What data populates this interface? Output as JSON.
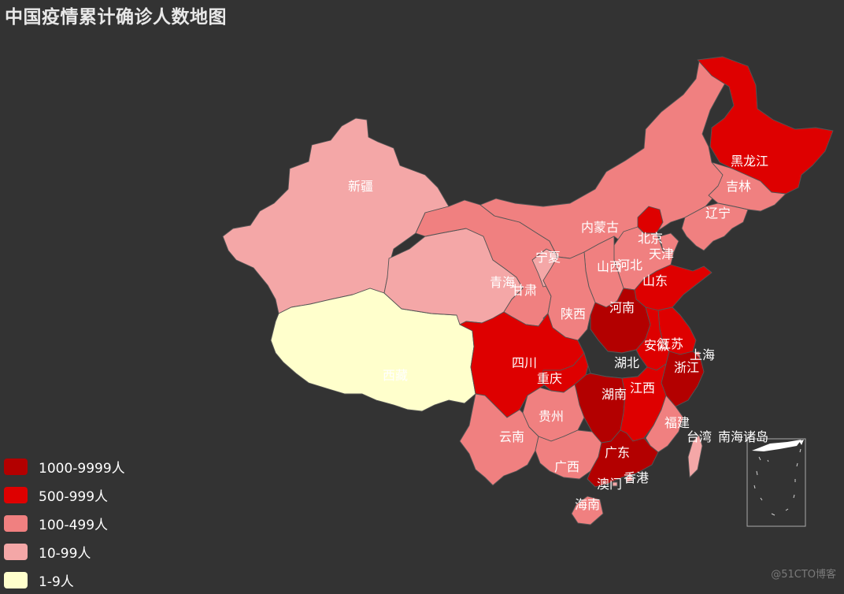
{
  "title": "中国疫情累计确诊人数地图",
  "legend": [
    {
      "label": "1000-9999人",
      "color": "#b30000"
    },
    {
      "label": "500-999人",
      "color": "#de0000"
    },
    {
      "label": "100-499人",
      "color": "#f08080"
    },
    {
      "label": "10-99人",
      "color": "#f4a7a7"
    },
    {
      "label": "1-9人",
      "color": "#ffffcc"
    }
  ],
  "provinces": [
    {
      "name": "新疆",
      "range": "10-99人",
      "color": "#f4a7a7"
    },
    {
      "name": "西藏",
      "range": "1-9人",
      "color": "#ffffcc"
    },
    {
      "name": "青海",
      "range": "10-99人",
      "color": "#f4a7a7"
    },
    {
      "name": "甘肃",
      "range": "100-499人",
      "color": "#f08080"
    },
    {
      "name": "内蒙古",
      "range": "100-499人",
      "color": "#f08080"
    },
    {
      "name": "宁夏",
      "range": "10-99人",
      "color": "#f4a7a7"
    },
    {
      "name": "黑龙江",
      "range": "500-999人",
      "color": "#de0000"
    },
    {
      "name": "吉林",
      "range": "100-499人",
      "color": "#f08080"
    },
    {
      "name": "辽宁",
      "range": "100-499人",
      "color": "#f08080"
    },
    {
      "name": "北京",
      "range": "500-999人",
      "color": "#de0000"
    },
    {
      "name": "天津",
      "range": "100-499人",
      "color": "#f08080"
    },
    {
      "name": "河北",
      "range": "100-499人",
      "color": "#f08080"
    },
    {
      "name": "山西",
      "range": "100-499人",
      "color": "#f08080"
    },
    {
      "name": "山东",
      "range": "500-999人",
      "color": "#de0000"
    },
    {
      "name": "陕西",
      "range": "100-499人",
      "color": "#f08080"
    },
    {
      "name": "河南",
      "range": "1000-9999人",
      "color": "#b30000"
    },
    {
      "name": "江苏",
      "range": "500-999人",
      "color": "#de0000"
    },
    {
      "name": "安徽",
      "range": "500-999人",
      "color": "#de0000"
    },
    {
      "name": "上海",
      "range": "100-499人",
      "color": "#f08080"
    },
    {
      "name": "四川",
      "range": "500-999人",
      "color": "#de0000"
    },
    {
      "name": "重庆",
      "range": "500-999人",
      "color": "#de0000"
    },
    {
      "name": "湖北",
      "range": "",
      "color": "#333333"
    },
    {
      "name": "浙江",
      "range": "1000-9999人",
      "color": "#b30000"
    },
    {
      "name": "湖南",
      "range": "1000-9999人",
      "color": "#b30000"
    },
    {
      "name": "江西",
      "range": "500-999人",
      "color": "#de0000"
    },
    {
      "name": "贵州",
      "range": "100-499人",
      "color": "#f08080"
    },
    {
      "name": "云南",
      "range": "100-499人",
      "color": "#f08080"
    },
    {
      "name": "福建",
      "range": "100-499人",
      "color": "#f08080"
    },
    {
      "name": "广西",
      "range": "100-499人",
      "color": "#f08080"
    },
    {
      "name": "广东",
      "range": "1000-9999人",
      "color": "#b30000"
    },
    {
      "name": "台湾",
      "range": "10-99人",
      "color": "#f4a7a7"
    },
    {
      "name": "香港",
      "range": "100-499人",
      "color": "#f08080"
    },
    {
      "name": "澳门",
      "range": "10-99人",
      "color": "#f4a7a7"
    },
    {
      "name": "海南",
      "range": "100-499人",
      "color": "#f08080"
    },
    {
      "name": "南海诸岛",
      "range": "",
      "color": "#ffffff"
    }
  ],
  "watermark": "@51CTO博客"
}
